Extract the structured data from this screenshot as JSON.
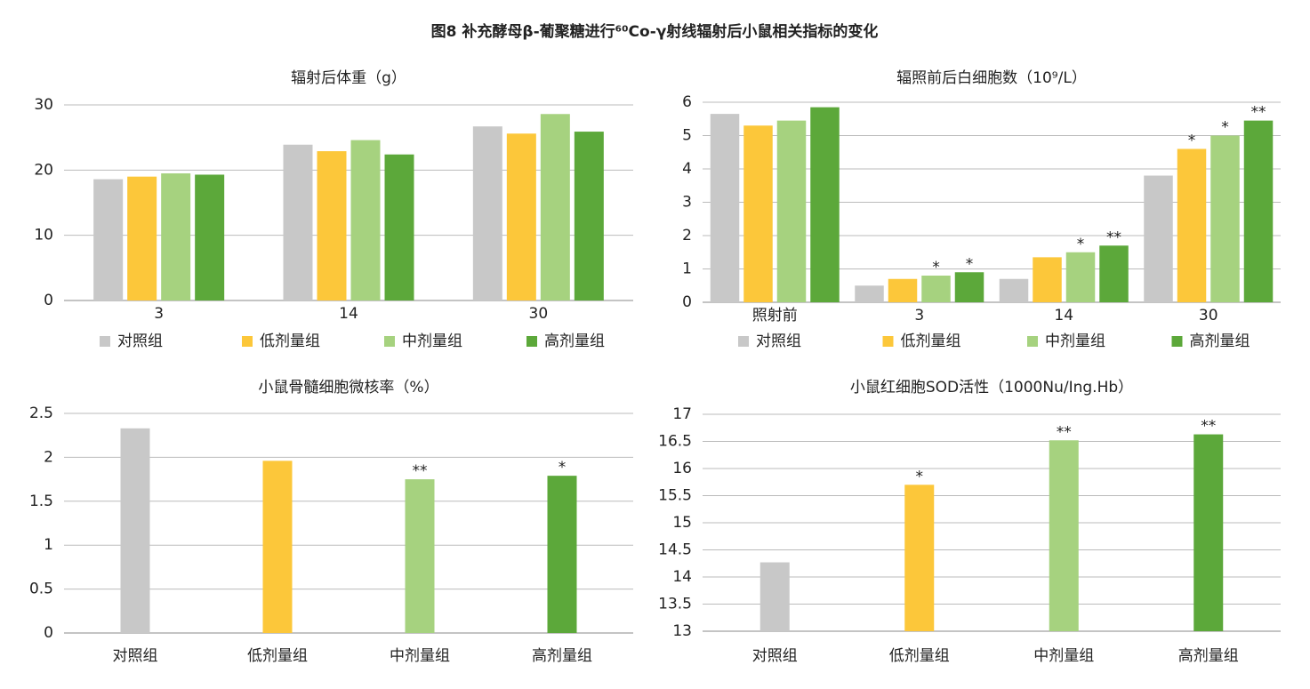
{
  "title": "图8 补充酵母β-葡聚糖进行⁶⁰Co-γ射线辐射后小鼠相关指标的变化",
  "chart_data": [
    {
      "type": "bar",
      "title": "辐射后体重（g）",
      "categories": [
        "3",
        "14",
        "30"
      ],
      "ylim": [
        0,
        30
      ],
      "yticks": [
        0,
        10,
        20,
        30
      ],
      "grid": true,
      "legend": "bottom",
      "series": [
        {
          "name": "对照组",
          "color": "#c8c8c8",
          "values": [
            18.6,
            23.9,
            26.7
          ]
        },
        {
          "name": "低剂量组",
          "color": "#fcc73a",
          "values": [
            19.0,
            22.9,
            25.6
          ]
        },
        {
          "name": "中剂量组",
          "color": "#a6d27f",
          "values": [
            19.5,
            24.6,
            28.6
          ]
        },
        {
          "name": "高剂量组",
          "color": "#5ca83a",
          "values": [
            19.3,
            22.4,
            25.9
          ]
        }
      ]
    },
    {
      "type": "bar",
      "title": "辐照前后白细胞数（10⁹/L）",
      "categories": [
        "照射前",
        "3",
        "14",
        "30"
      ],
      "ylim": [
        0,
        6
      ],
      "yticks": [
        0,
        1,
        2,
        3,
        4,
        5,
        6
      ],
      "grid": true,
      "legend": "bottom",
      "series": [
        {
          "name": "对照组",
          "color": "#c8c8c8",
          "values": [
            5.65,
            0.5,
            0.7,
            3.8
          ],
          "annotations": [
            null,
            null,
            null,
            null
          ]
        },
        {
          "name": "低剂量组",
          "color": "#fcc73a",
          "values": [
            5.3,
            0.7,
            1.35,
            4.6
          ],
          "annotations": [
            null,
            null,
            null,
            "*"
          ]
        },
        {
          "name": "中剂量组",
          "color": "#a6d27f",
          "values": [
            5.45,
            0.8,
            1.5,
            5.0
          ],
          "annotations": [
            null,
            "*",
            "*",
            "*"
          ]
        },
        {
          "name": "高剂量组",
          "color": "#5ca83a",
          "values": [
            5.85,
            0.9,
            1.7,
            5.45
          ],
          "annotations": [
            null,
            "*",
            "**",
            "**"
          ]
        }
      ]
    },
    {
      "type": "bar",
      "title": "小鼠骨髓细胞微核率（%）",
      "categories": [
        "对照组",
        "低剂量组",
        "中剂量组",
        "高剂量组"
      ],
      "values": [
        2.33,
        1.96,
        1.75,
        1.79
      ],
      "colors": [
        "#c8c8c8",
        "#fcc73a",
        "#a6d27f",
        "#5ca83a"
      ],
      "annotations": [
        null,
        null,
        "**",
        "*"
      ],
      "ylim": [
        0,
        2.5
      ],
      "yticks": [
        0,
        0.5,
        1,
        1.5,
        2,
        2.5
      ],
      "grid": true
    },
    {
      "type": "bar",
      "title": "小鼠红细胞SOD活性（1000Nu/Ing.Hb）",
      "categories": [
        "对照组",
        "低剂量组",
        "中剂量组",
        "高剂量组"
      ],
      "values": [
        14.27,
        15.7,
        16.52,
        16.63
      ],
      "colors": [
        "#c8c8c8",
        "#fcc73a",
        "#a6d27f",
        "#5ca83a"
      ],
      "annotations": [
        null,
        "*",
        "**",
        "**"
      ],
      "ylim": [
        13,
        17
      ],
      "yticks": [
        13,
        13.5,
        14,
        14.5,
        15,
        15.5,
        16,
        16.5,
        17
      ],
      "grid": true
    }
  ]
}
